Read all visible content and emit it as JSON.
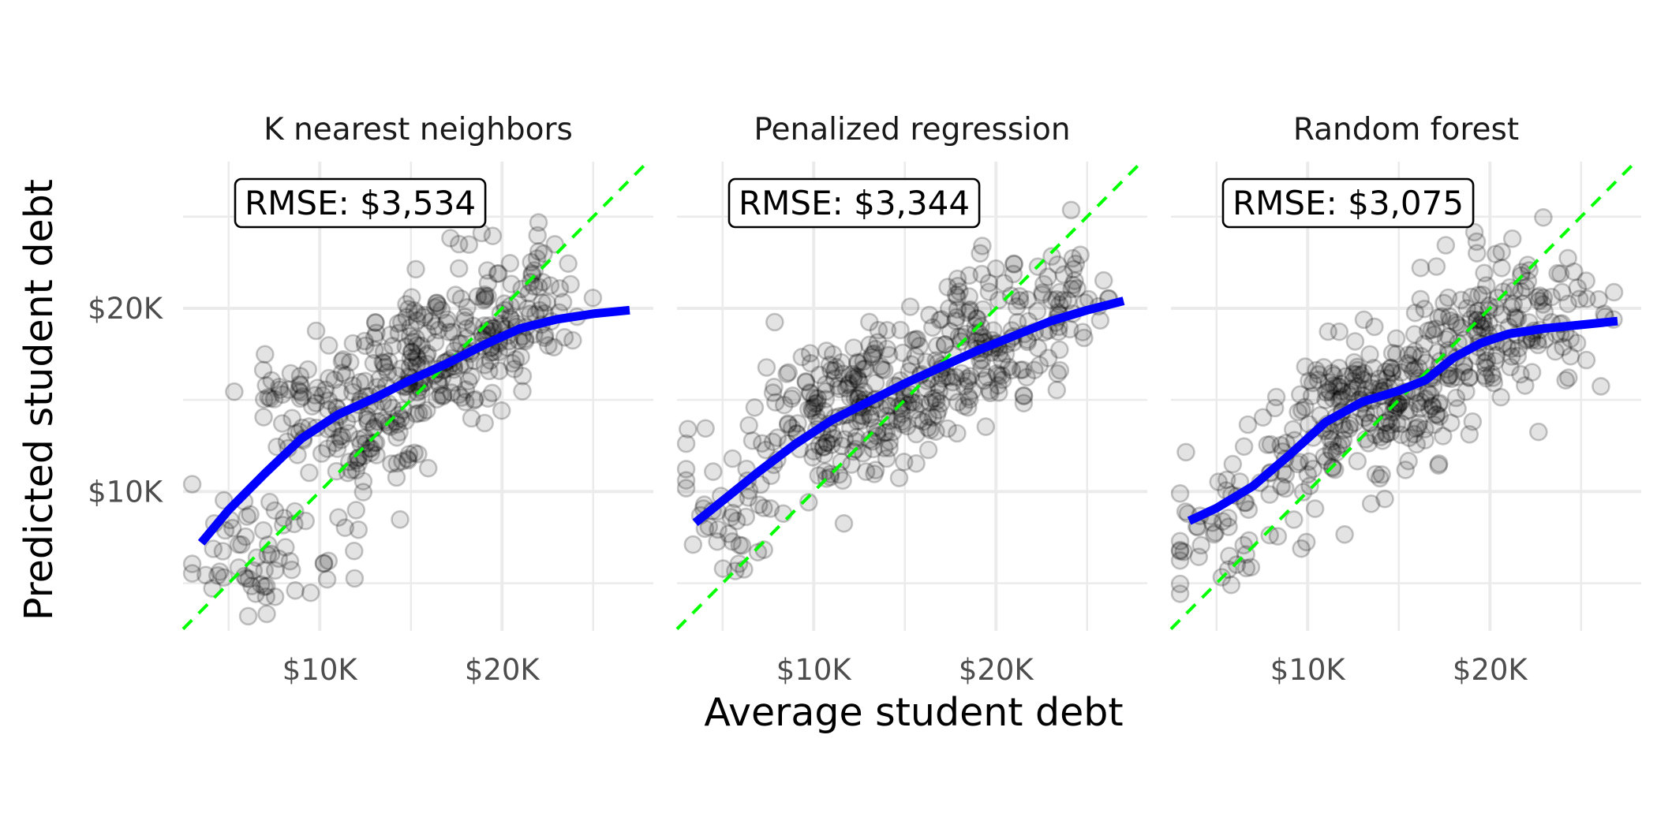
{
  "chart_data": {
    "type": "scatter",
    "xlabel": "Average student debt",
    "ylabel": "Predicted student debt",
    "xlim": [
      2500,
      28300
    ],
    "ylim": [
      2400,
      28000
    ],
    "x_ticks": [
      10000,
      20000
    ],
    "x_tick_labels": [
      "$10K",
      "$20K"
    ],
    "y_ticks": [
      10000,
      20000
    ],
    "y_tick_labels": [
      "$10K",
      "$20K"
    ],
    "grid": true,
    "reference_line": "y = x",
    "reference_color": "#00ff00",
    "smooth_color": "#0000ff",
    "point_color": "#000000",
    "point_alpha": 0.12,
    "n_points_per_panel": 450,
    "facets": [
      {
        "title": "K nearest neighbors",
        "rmse_label": "RMSE: $3,534",
        "smooth": [
          [
            3500,
            7200
          ],
          [
            5000,
            9000
          ],
          [
            7000,
            11000
          ],
          [
            9000,
            12900
          ],
          [
            11000,
            14200
          ],
          [
            13000,
            15100
          ],
          [
            15000,
            16100
          ],
          [
            17000,
            17000
          ],
          [
            19000,
            18000
          ],
          [
            21000,
            18900
          ],
          [
            23000,
            19400
          ],
          [
            25000,
            19700
          ],
          [
            27000,
            19900
          ]
        ],
        "clusters": [
          [
            5500,
            6700,
            40
          ],
          [
            8800,
            7200,
            25
          ],
          [
            9000,
            15000,
            55
          ],
          [
            13000,
            13500,
            80
          ],
          [
            15500,
            17000,
            110
          ],
          [
            19000,
            18500,
            90
          ],
          [
            22000,
            20500,
            50
          ]
        ]
      },
      {
        "title": "Penalized regression",
        "rmse_label": "RMSE: $3,344",
        "smooth": [
          [
            3500,
            8300
          ],
          [
            5000,
            9500
          ],
          [
            7000,
            11100
          ],
          [
            9000,
            12600
          ],
          [
            11000,
            13900
          ],
          [
            13000,
            14900
          ],
          [
            15000,
            15900
          ],
          [
            17000,
            16800
          ],
          [
            19000,
            17700
          ],
          [
            21000,
            18500
          ],
          [
            23000,
            19300
          ],
          [
            25000,
            19900
          ],
          [
            27000,
            20400
          ]
        ],
        "clusters": [
          [
            5500,
            9200,
            40
          ],
          [
            9000,
            13500,
            55
          ],
          [
            12000,
            14500,
            90
          ],
          [
            15500,
            15800,
            110
          ],
          [
            19500,
            18500,
            100
          ],
          [
            23500,
            20000,
            55
          ]
        ]
      },
      {
        "title": "Random forest",
        "rmse_label": "RMSE: $3,075",
        "smooth": [
          [
            3500,
            8400
          ],
          [
            5000,
            9100
          ],
          [
            7000,
            10300
          ],
          [
            9000,
            12000
          ],
          [
            11000,
            13800
          ],
          [
            13000,
            14900
          ],
          [
            15000,
            15500
          ],
          [
            16500,
            16100
          ],
          [
            18000,
            17300
          ],
          [
            19500,
            18100
          ],
          [
            21000,
            18600
          ],
          [
            23000,
            18900
          ],
          [
            25000,
            19100
          ],
          [
            27000,
            19300
          ]
        ],
        "clusters": [
          [
            5500,
            7500,
            45
          ],
          [
            9000,
            12000,
            45
          ],
          [
            12500,
            14500,
            90
          ],
          [
            15500,
            15500,
            110
          ],
          [
            19500,
            19200,
            100
          ],
          [
            23500,
            19000,
            60
          ]
        ]
      }
    ]
  }
}
